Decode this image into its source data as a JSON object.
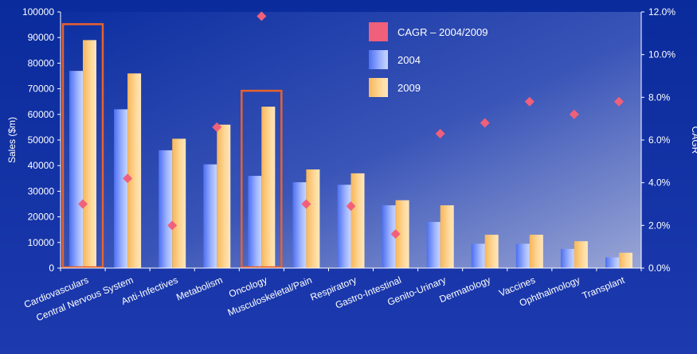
{
  "chart_data": {
    "type": "bar",
    "categories": [
      "Cardiovasculars",
      "Central Nervous System",
      "Anti-Infectives",
      "Metabolism",
      "Oncology",
      "Musculoskeletal/Pain",
      "Respiratory",
      "Gastro-Intestinal",
      "Genito-Urinary",
      "Dermatology",
      "Vaccines",
      "Ophthalmology",
      "Transplant"
    ],
    "series": [
      {
        "name": "2004",
        "type": "bar",
        "axis": "left",
        "color": "#8aa2ff",
        "values": [
          77000,
          62000,
          46000,
          40500,
          36000,
          33500,
          32500,
          24500,
          18000,
          9500,
          9500,
          7500,
          4200
        ]
      },
      {
        "name": "2009",
        "type": "bar",
        "axis": "left",
        "color": "#ffd690",
        "values": [
          89000,
          76000,
          50500,
          56000,
          63000,
          38500,
          37000,
          26500,
          24500,
          13000,
          13000,
          10500,
          6000
        ]
      },
      {
        "name": "CAGR – 2004/2009",
        "type": "scatter",
        "axis": "right",
        "color": "#f0607a",
        "values": [
          3.0,
          4.2,
          2.0,
          6.6,
          11.8,
          3.0,
          2.9,
          1.6,
          6.3,
          6.8,
          7.8,
          7.2,
          7.8
        ]
      }
    ],
    "highlighted_categories": [
      "Cardiovasculars",
      "Oncology"
    ],
    "highlight_color": "#e8622a",
    "ylabel": "Sales ($m)",
    "y2label": "CAGR",
    "ylim": [
      0,
      100000
    ],
    "y2lim": [
      0,
      12
    ],
    "yticks": [
      "0",
      "10000",
      "20000",
      "30000",
      "40000",
      "50000",
      "60000",
      "70000",
      "80000",
      "90000",
      "100000"
    ],
    "y2ticks": [
      "0.0%",
      "2.0%",
      "4.0%",
      "6.0%",
      "8.0%",
      "10.0%",
      "12.0%"
    ],
    "legend": {
      "position": "top-right-inside",
      "entries": [
        "CAGR – 2004/2009",
        "2004",
        "2009"
      ]
    },
    "grid": false
  },
  "colors": {
    "background_top": "#0a2fa0",
    "background_bottom": "#2a47b8",
    "plot_glow": "#aab4df",
    "text": "#ffffff"
  }
}
